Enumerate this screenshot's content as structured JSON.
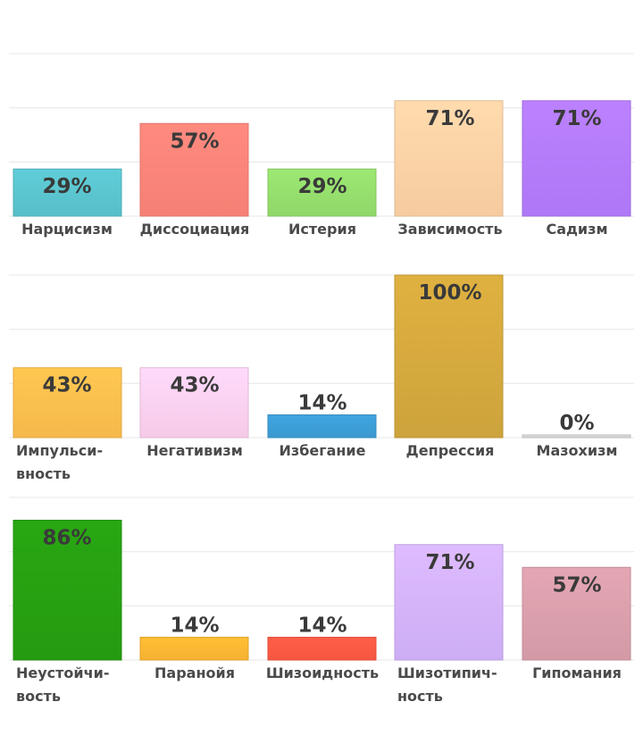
{
  "chart_data": [
    {
      "type": "bar",
      "categories": [
        "Нарцисизм",
        "Диссоциация",
        "Истерия",
        "Зависимость",
        "Садизм"
      ],
      "values": [
        29,
        57,
        29,
        71,
        71
      ],
      "value_labels": [
        "29%",
        "57%",
        "29%",
        "71%",
        "71%"
      ],
      "colors": [
        "#5bc6d0",
        "#ff857a",
        "#96e06e",
        "#ffd3a6",
        "#b57cff"
      ],
      "ylim": [
        0,
        100
      ],
      "grid": true,
      "legend": "none"
    },
    {
      "type": "bar",
      "categories": [
        "Импульси-\nвность",
        "Негативизм",
        "Избегание",
        "Депрессия",
        "Мазохизм"
      ],
      "values": [
        43,
        43,
        14,
        100,
        0
      ],
      "value_labels": [
        "43%",
        "43%",
        "14%",
        "100%",
        "0%"
      ],
      "colors": [
        "#ffc04e",
        "#ffd2f1",
        "#3d9fd8",
        "#d6aa3e",
        "#d8d8d8"
      ],
      "ylim": [
        0,
        100
      ],
      "grid": true,
      "legend": "none"
    },
    {
      "type": "bar",
      "categories": [
        "Неустойчи-\nвость",
        "Паранойя",
        "Шизоидность",
        "Шизотипич-\nность",
        "Гипомания"
      ],
      "values": [
        86,
        14,
        14,
        71,
        57
      ],
      "value_labels": [
        "86%",
        "14%",
        "14%",
        "71%",
        "57%"
      ],
      "colors": [
        "#27a111",
        "#ffb833",
        "#ff5a43",
        "#d6b4ff",
        "#dca0ad"
      ],
      "ylim": [
        0,
        100
      ],
      "grid": true,
      "legend": "none"
    }
  ]
}
